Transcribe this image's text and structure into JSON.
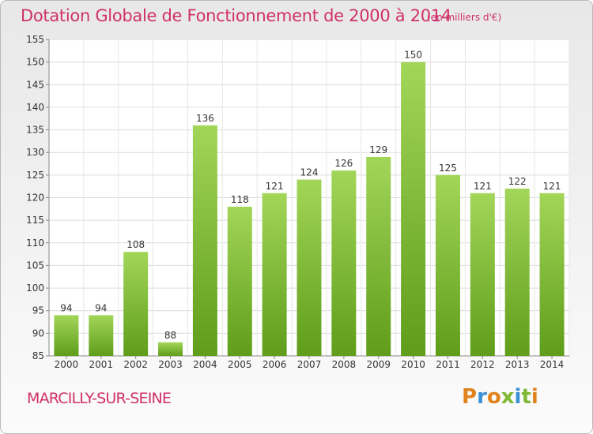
{
  "chart_data": {
    "type": "bar",
    "title": "Dotation Globale de Fonctionnement de 2000 à 2014",
    "unit": "(en milliers d'€)",
    "categories": [
      "2000",
      "2001",
      "2002",
      "2003",
      "2004",
      "2005",
      "2006",
      "2007",
      "2008",
      "2009",
      "2010",
      "2011",
      "2012",
      "2013",
      "2014"
    ],
    "values": [
      94,
      94,
      108,
      88,
      136,
      118,
      121,
      124,
      126,
      129,
      150,
      125,
      121,
      122,
      121
    ],
    "ylim": [
      85,
      155
    ],
    "yticks": [
      85,
      90,
      95,
      100,
      105,
      110,
      115,
      120,
      125,
      130,
      135,
      140,
      145,
      150,
      155
    ],
    "grid": true,
    "bar_color": "#7cbf2e"
  },
  "footer": {
    "place": "MARCILLY-SUR-SEINE",
    "logo": "Proxiti"
  },
  "logo_colors": [
    "#e2821d",
    "#3a8fd6",
    "#e2821d",
    "#7fb832",
    "#3a8fd6",
    "#7fb832",
    "#e2821d"
  ]
}
